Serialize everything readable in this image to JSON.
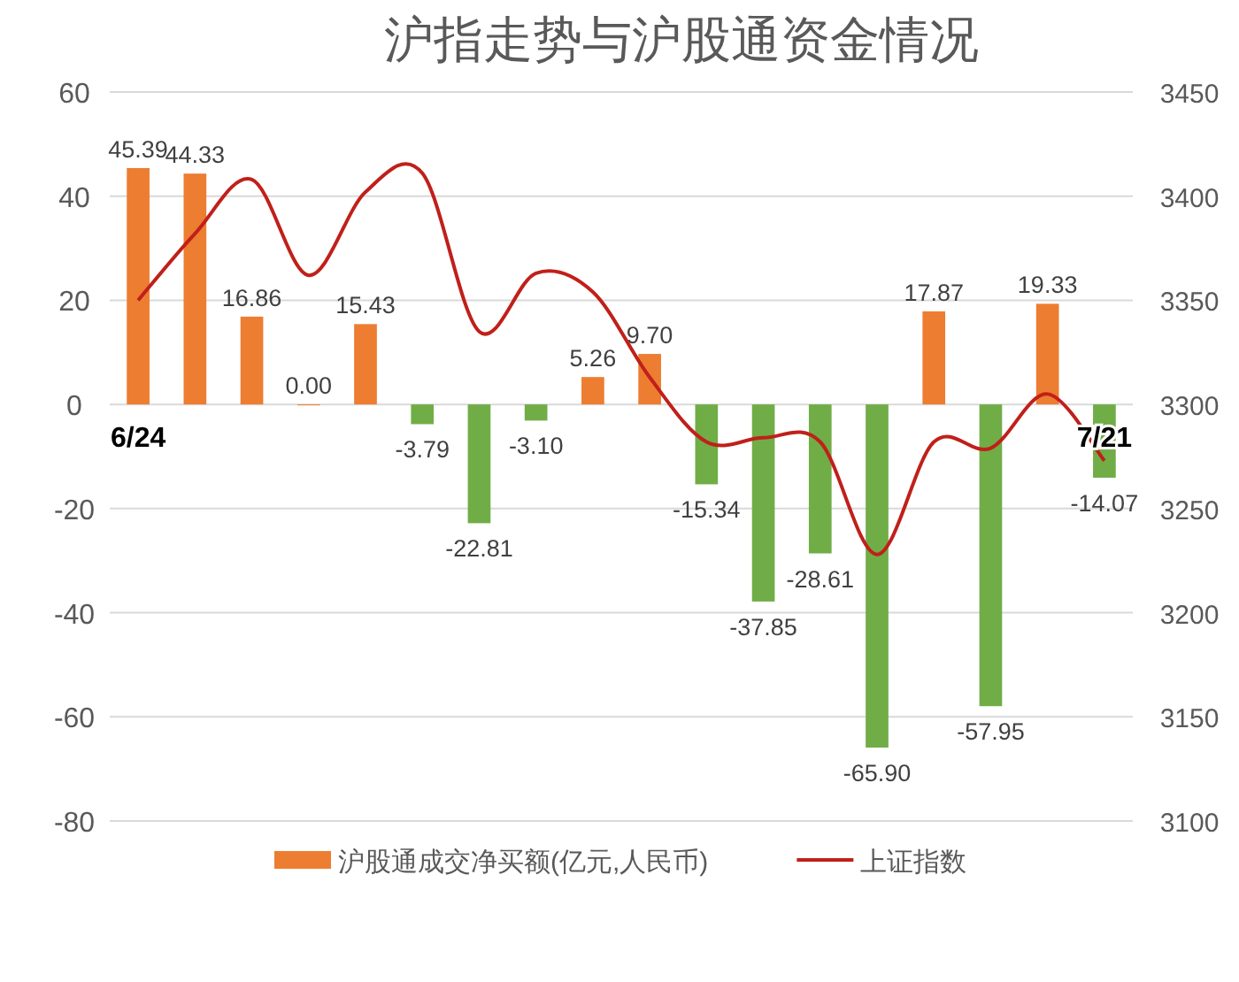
{
  "chart_data": {
    "type": "bar",
    "title": "沪指走势与沪股通资金情况",
    "categories": [
      "6/24",
      null,
      null,
      null,
      null,
      null,
      null,
      null,
      null,
      null,
      null,
      null,
      null,
      null,
      null,
      null,
      null,
      "7/21"
    ],
    "series": [
      {
        "name": "沪股通成交净买额(亿元,人民币)",
        "color": "#ed7d31",
        "value_labels": [
          "45.39",
          "44.33",
          "16.86",
          "0.00",
          "15.43",
          "-3.79",
          "-22.81",
          "-3.10",
          "5.26",
          "9.70",
          "-15.34",
          "-37.85",
          "-28.61",
          "-65.90",
          "17.87",
          "-57.95",
          "19.33",
          "-14.07"
        ],
        "colors": [
          "#ed7d31",
          "#ed7d31",
          "#ed7d31",
          "#ed7d31",
          "#ed7d31",
          "#70ad47",
          "#70ad47",
          "#70ad47",
          "#ed7d31",
          "#ed7d31",
          "#70ad47",
          "#70ad47",
          "#70ad47",
          "#70ad47",
          "#ed7d31",
          "#70ad47",
          "#ed7d31",
          "#70ad47"
        ],
        "values": [
          45.39,
          44.33,
          16.86,
          0.0,
          15.43,
          -3.79,
          -22.81,
          -3.1,
          5.26,
          9.7,
          -15.34,
          -37.85,
          -28.61,
          -65.9,
          17.87,
          -57.95,
          19.33,
          -14.07
        ]
      },
      {
        "name": "上证指数",
        "type": "line",
        "axis": "y2",
        "color": "#c0201a",
        "values": [
          3350,
          3382,
          3408,
          3362,
          3402,
          3411,
          3335,
          3363,
          3354,
          3313,
          3282,
          3284,
          3282,
          3228,
          3282,
          3279,
          3305,
          3273
        ]
      }
    ],
    "ylim": [
      -80,
      60
    ],
    "yticks": [
      -80,
      -60,
      -40,
      -20,
      0,
      20,
      40,
      60
    ],
    "y2lim": [
      3100,
      3450
    ],
    "y2ticks": [
      3100,
      3150,
      3200,
      3250,
      3300,
      3350,
      3400,
      3450
    ],
    "grid": "y",
    "legend": "bottom"
  }
}
